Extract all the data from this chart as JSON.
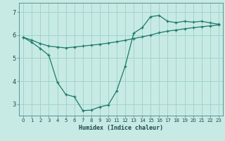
{
  "bg_color": "#c8eae4",
  "grid_color": "#a0d4cc",
  "line_color": "#1a7a6a",
  "xlabel": "Humidex (Indice chaleur)",
  "xlim": [
    -0.5,
    23.5
  ],
  "ylim": [
    2.5,
    7.4
  ],
  "yticks": [
    3,
    4,
    5,
    6,
    7
  ],
  "xticks": [
    0,
    1,
    2,
    3,
    4,
    5,
    6,
    7,
    8,
    9,
    10,
    11,
    12,
    13,
    14,
    15,
    16,
    17,
    18,
    19,
    20,
    21,
    22,
    23
  ],
  "line1_x": [
    0,
    1,
    2,
    3,
    4,
    5,
    6,
    7,
    8,
    9,
    10,
    11,
    12,
    13,
    14,
    15,
    16,
    17,
    18,
    19,
    20,
    21,
    22,
    23
  ],
  "line1_y": [
    5.9,
    5.78,
    5.63,
    5.52,
    5.48,
    5.44,
    5.48,
    5.52,
    5.56,
    5.6,
    5.65,
    5.71,
    5.77,
    5.85,
    5.92,
    6.0,
    6.1,
    6.17,
    6.22,
    6.27,
    6.32,
    6.36,
    6.4,
    6.44
  ],
  "line2_x": [
    0,
    1,
    2,
    3,
    4,
    5,
    6,
    7,
    8,
    9,
    10,
    11,
    12,
    13,
    14,
    15,
    16,
    17,
    18,
    19,
    20,
    21,
    22,
    23
  ],
  "line2_y": [
    5.9,
    5.68,
    5.42,
    5.12,
    3.95,
    3.42,
    3.32,
    2.72,
    2.74,
    2.88,
    2.96,
    3.58,
    4.65,
    6.08,
    6.32,
    6.8,
    6.85,
    6.6,
    6.54,
    6.6,
    6.56,
    6.6,
    6.53,
    6.47
  ]
}
